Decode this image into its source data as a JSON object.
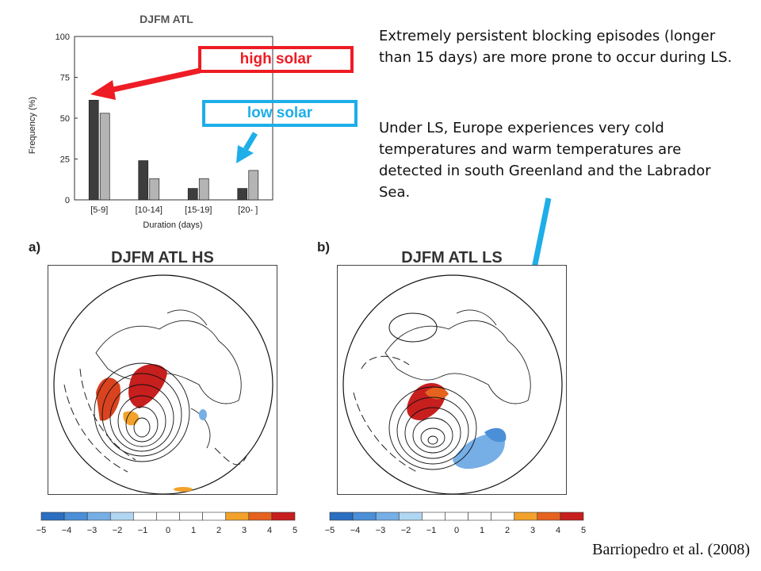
{
  "chart_data": {
    "type": "bar",
    "title": "DJFM ATL",
    "xlabel": "Duration (days)",
    "ylabel": "Frequency (%)",
    "ylim": [
      0,
      100
    ],
    "yticks": [
      "0",
      "25",
      "50",
      "75",
      "100"
    ],
    "categories": [
      "[5-9]",
      "[10-14]",
      "[15-19]",
      "[20- ]"
    ],
    "series": [
      {
        "values": [
          61,
          24,
          7,
          7
        ],
        "color": "#3d3d3d"
      },
      {
        "values": [
          53,
          13,
          13,
          18
        ],
        "color": "#b4b4b4"
      }
    ]
  },
  "labels": {
    "high_solar": "high solar",
    "low_solar": "low solar"
  },
  "text": {
    "p1": "Extremely persistent blocking episodes (longer than 15 days) are more prone to occur during LS.",
    "p2": "Under LS, Europe experiences very cold temperatures and warm temperatures are detected in south Greenland and the Labrador Sea."
  },
  "panels": {
    "a_letter": "a)",
    "a_title": "DJFM ATL HS",
    "b_letter": "b)",
    "b_title": "DJFM ATL LS"
  },
  "colorbar": {
    "ticks": [
      "−5",
      "−4",
      "−3",
      "−2",
      "−1",
      "0",
      "1",
      "2",
      "3",
      "4",
      "5"
    ],
    "colors": [
      "#2b6fc2",
      "#4b8fd8",
      "#76aee6",
      "#b0d6f2",
      "#ffffff",
      "#ffffff",
      "#ffffff",
      "#ffffff",
      "#f2a22b",
      "#e5621f",
      "#c71e1e"
    ]
  },
  "citation": "Barriopedro et al. (2008)",
  "colors": {
    "high_solar": "#ee1c24",
    "low_solar": "#1eaee8"
  }
}
